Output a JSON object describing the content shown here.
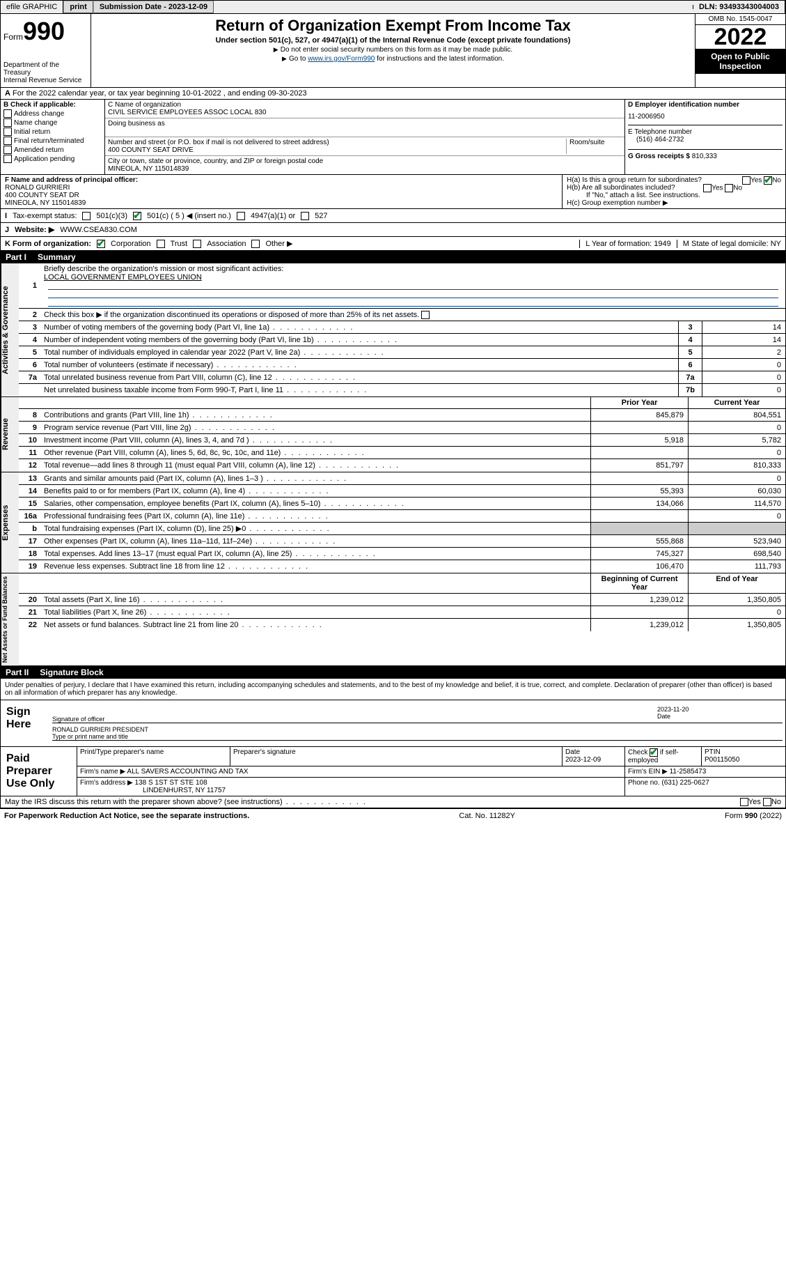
{
  "topbar": {
    "efile": "efile GRAPHIC",
    "print": "print",
    "sub_label": "Submission Date - 2023-12-09",
    "dln": "DLN: 93493343004003"
  },
  "header": {
    "form_word": "Form",
    "form_num": "990",
    "title": "Return of Organization Exempt From Income Tax",
    "sub1": "Under section 501(c), 527, or 4947(a)(1) of the Internal Revenue Code (except private foundations)",
    "sub2": "Do not enter social security numbers on this form as it may be made public.",
    "sub3_pre": "Go to ",
    "sub3_link": "www.irs.gov/Form990",
    "sub3_post": " for instructions and the latest information.",
    "omb": "OMB No. 1545-0047",
    "year": "2022",
    "open_pub": "Open to Public Inspection",
    "dept": "Department of the Treasury",
    "irs": "Internal Revenue Service"
  },
  "a_row": "For the 2022 calendar year, or tax year beginning 10-01-2022   , and ending 09-30-2023",
  "b": {
    "label": "B Check if applicable:",
    "opts": [
      "Address change",
      "Name change",
      "Initial return",
      "Final return/terminated",
      "Amended return",
      "Application pending"
    ]
  },
  "c": {
    "name_lbl": "C Name of organization",
    "name": "CIVIL SERVICE EMPLOYEES ASSOC LOCAL 830",
    "dba_lbl": "Doing business as",
    "addr_lbl": "Number and street (or P.O. box if mail is not delivered to street address)",
    "room_lbl": "Room/suite",
    "addr": "400 COUNTY SEAT DRIVE",
    "city_lbl": "City or town, state or province, country, and ZIP or foreign postal code",
    "city": "MINEOLA, NY  115014839"
  },
  "d": {
    "lbl": "D Employer identification number",
    "val": "11-2006950"
  },
  "e": {
    "lbl": "E Telephone number",
    "val": "(516) 464-2732"
  },
  "g": {
    "lbl": "G Gross receipts $",
    "val": "810,333"
  },
  "f": {
    "lbl": "F  Name and address of principal officer:",
    "name": "RONALD GURRIERI",
    "addr1": "400 COUNTY SEAT DR",
    "addr2": "MINEOLA, NY  115014839"
  },
  "h": {
    "a": "H(a)  Is this a group return for subordinates?",
    "b": "H(b)  Are all subordinates included?",
    "note": "If \"No,\" attach a list. See instructions.",
    "c": "H(c)  Group exemption number ▶",
    "yes": "Yes",
    "no": "No"
  },
  "i": {
    "lbl": "I",
    "txt": "Tax-exempt status:",
    "o1": "501(c)(3)",
    "o2": "501(c) ( 5 ) ◀ (insert no.)",
    "o3": "4947(a)(1) or",
    "o4": "527"
  },
  "j": {
    "lbl": "J",
    "txt": "Website: ▶",
    "val": "WWW.CSEA830.COM"
  },
  "k": {
    "lbl": "K Form of organization:",
    "o1": "Corporation",
    "o2": "Trust",
    "o3": "Association",
    "o4": "Other ▶",
    "l": "L Year of formation: 1949",
    "m": "M State of legal domicile: NY"
  },
  "part1": {
    "num": "Part I",
    "title": "Summary"
  },
  "summary": {
    "l1": "Briefly describe the organization's mission or most significant activities:",
    "l1v": "LOCAL GOVERNMENT EMPLOYEES UNION",
    "l2": "Check this box ▶     if the organization discontinued its operations or disposed of more than 25% of its net assets.",
    "rows_gov": [
      {
        "n": "3",
        "t": "Number of voting members of the governing body (Part VI, line 1a)",
        "box": "3",
        "v": "14"
      },
      {
        "n": "4",
        "t": "Number of independent voting members of the governing body (Part VI, line 1b)",
        "box": "4",
        "v": "14"
      },
      {
        "n": "5",
        "t": "Total number of individuals employed in calendar year 2022 (Part V, line 2a)",
        "box": "5",
        "v": "2"
      },
      {
        "n": "6",
        "t": "Total number of volunteers (estimate if necessary)",
        "box": "6",
        "v": "0"
      },
      {
        "n": "7a",
        "t": "Total unrelated business revenue from Part VIII, column (C), line 12",
        "box": "7a",
        "v": "0"
      },
      {
        "n": "",
        "t": "Net unrelated business taxable income from Form 990-T, Part I, line 11",
        "box": "7b",
        "v": "0"
      }
    ],
    "col_prior": "Prior Year",
    "col_curr": "Current Year",
    "rows_rev": [
      {
        "n": "8",
        "t": "Contributions and grants (Part VIII, line 1h)",
        "p": "845,879",
        "c": "804,551"
      },
      {
        "n": "9",
        "t": "Program service revenue (Part VIII, line 2g)",
        "p": "",
        "c": "0"
      },
      {
        "n": "10",
        "t": "Investment income (Part VIII, column (A), lines 3, 4, and 7d )",
        "p": "5,918",
        "c": "5,782"
      },
      {
        "n": "11",
        "t": "Other revenue (Part VIII, column (A), lines 5, 6d, 8c, 9c, 10c, and 11e)",
        "p": "",
        "c": "0"
      },
      {
        "n": "12",
        "t": "Total revenue—add lines 8 through 11 (must equal Part VIII, column (A), line 12)",
        "p": "851,797",
        "c": "810,333"
      }
    ],
    "rows_exp": [
      {
        "n": "13",
        "t": "Grants and similar amounts paid (Part IX, column (A), lines 1–3 )",
        "p": "",
        "c": "0"
      },
      {
        "n": "14",
        "t": "Benefits paid to or for members (Part IX, column (A), line 4)",
        "p": "55,393",
        "c": "60,030"
      },
      {
        "n": "15",
        "t": "Salaries, other compensation, employee benefits (Part IX, column (A), lines 5–10)",
        "p": "134,066",
        "c": "114,570"
      },
      {
        "n": "16a",
        "t": "Professional fundraising fees (Part IX, column (A), line 11e)",
        "p": "",
        "c": "0"
      },
      {
        "n": "b",
        "t": "Total fundraising expenses (Part IX, column (D), line 25) ▶0",
        "p": "—",
        "c": "—"
      },
      {
        "n": "17",
        "t": "Other expenses (Part IX, column (A), lines 11a–11d, 11f–24e)",
        "p": "555,868",
        "c": "523,940"
      },
      {
        "n": "18",
        "t": "Total expenses. Add lines 13–17 (must equal Part IX, column (A), line 25)",
        "p": "745,327",
        "c": "698,540"
      },
      {
        "n": "19",
        "t": "Revenue less expenses. Subtract line 18 from line 12",
        "p": "106,470",
        "c": "111,793"
      }
    ],
    "col_beg": "Beginning of Current Year",
    "col_end": "End of Year",
    "rows_net": [
      {
        "n": "20",
        "t": "Total assets (Part X, line 16)",
        "p": "1,239,012",
        "c": "1,350,805"
      },
      {
        "n": "21",
        "t": "Total liabilities (Part X, line 26)",
        "p": "",
        "c": "0"
      },
      {
        "n": "22",
        "t": "Net assets or fund balances. Subtract line 21 from line 20",
        "p": "1,239,012",
        "c": "1,350,805"
      }
    ]
  },
  "vert": {
    "gov": "Activities & Governance",
    "rev": "Revenue",
    "exp": "Expenses",
    "net": "Net Assets or Fund Balances"
  },
  "part2": {
    "num": "Part II",
    "title": "Signature Block"
  },
  "perjury": "Under penalties of perjury, I declare that I have examined this return, including accompanying schedules and statements, and to the best of my knowledge and belief, it is true, correct, and complete. Declaration of preparer (other than officer) is based on all information of which preparer has any knowledge.",
  "sign": {
    "here": "Sign Here",
    "sig_officer": "Signature of officer",
    "date": "Date",
    "date_val": "2023-11-20",
    "name_title": "RONALD GURRIERI PRESIDENT",
    "type_name": "Type or print name and title"
  },
  "paid": {
    "lbl": "Paid Preparer Use Only",
    "h1": "Print/Type preparer's name",
    "h2": "Preparer's signature",
    "h3": "Date",
    "h3v": "2023-12-09",
    "h4": "Check",
    "h4b": "if self-employed",
    "h5": "PTIN",
    "h5v": "P00115050",
    "firm_name_lbl": "Firm's name  ▶",
    "firm_name": "ALL SAVERS ACCOUNTING AND TAX",
    "firm_ein_lbl": "Firm's EIN ▶",
    "firm_ein": "11-2585473",
    "firm_addr_lbl": "Firm's address ▶",
    "firm_addr1": "138 S 1ST ST STE 108",
    "firm_addr2": "LINDENHURST, NY  11757",
    "phone_lbl": "Phone no.",
    "phone": "(631) 225-0627"
  },
  "may_irs": "May the IRS discuss this return with the preparer shown above? (see instructions)",
  "footer": {
    "pra": "For Paperwork Reduction Act Notice, see the separate instructions.",
    "cat": "Cat. No. 11282Y",
    "form": "Form 990 (2022)"
  }
}
